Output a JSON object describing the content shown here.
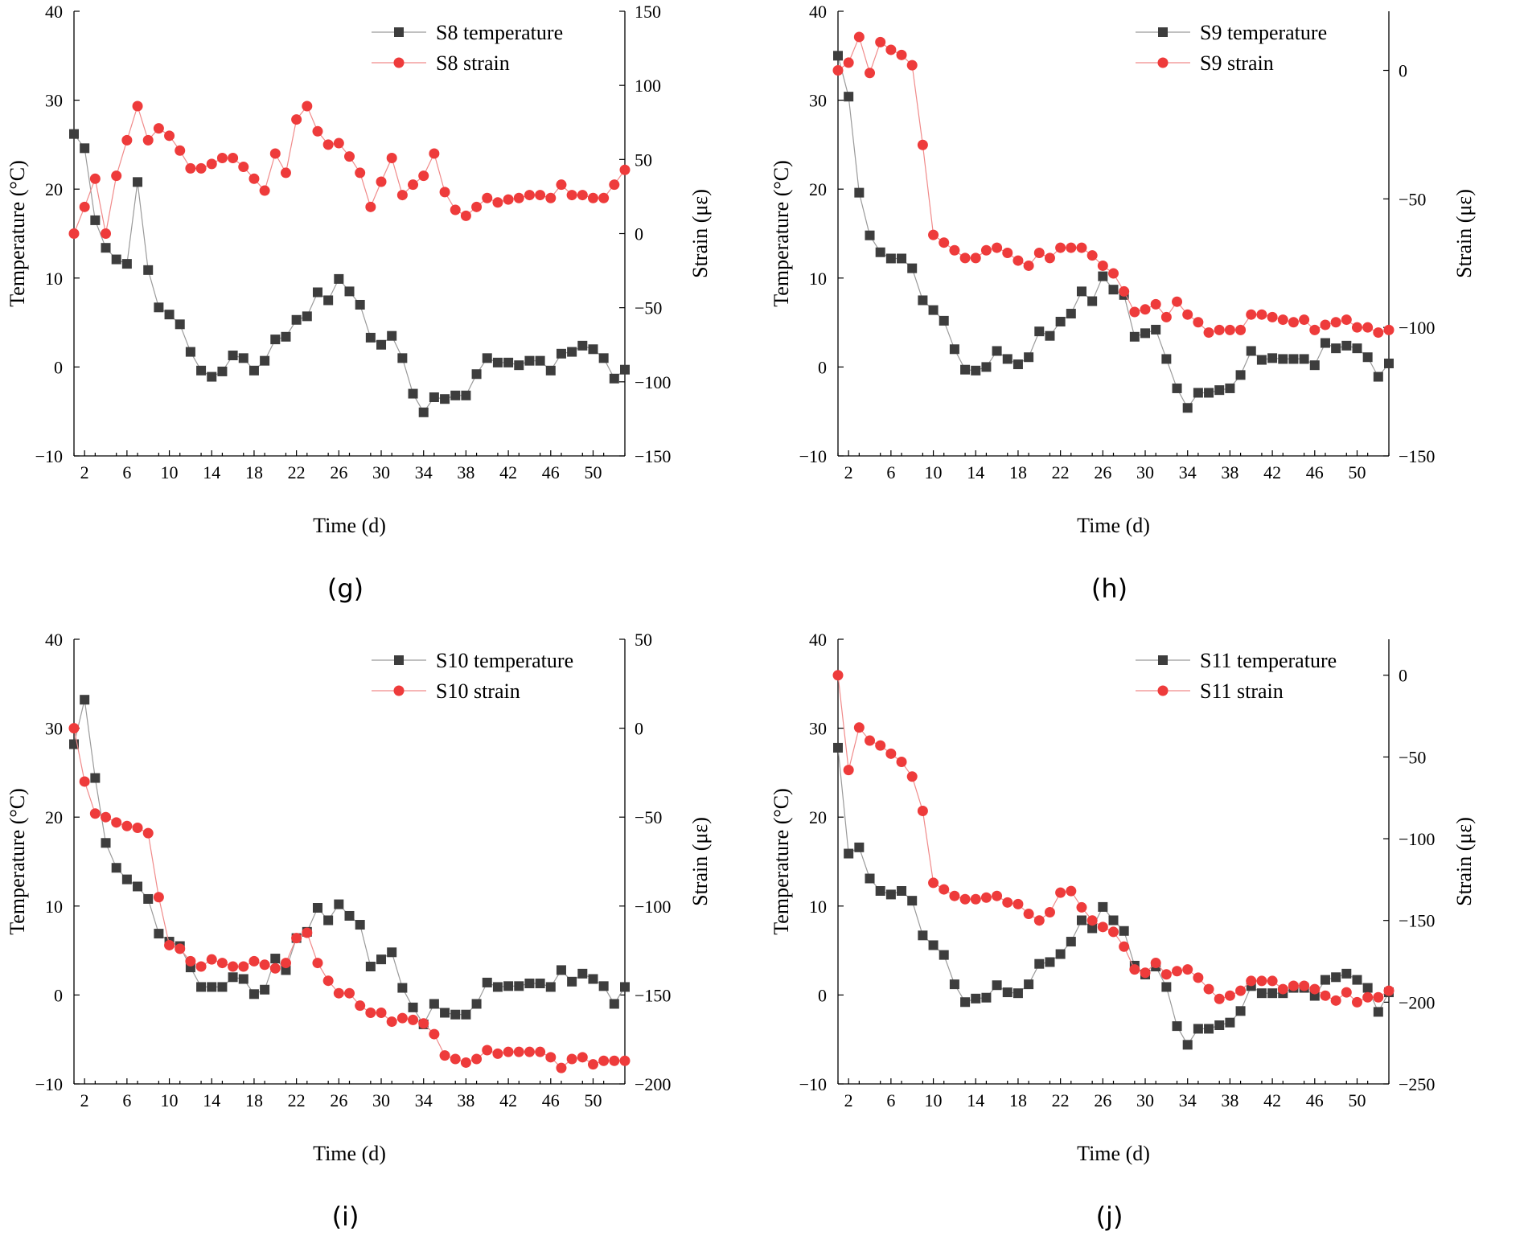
{
  "colors": {
    "temperature": "#3d3d3d",
    "strain": "#ee3b3b"
  },
  "chart_data": [
    {
      "type": "line",
      "caption": "(g)",
      "xlabel": "Time (d)",
      "ylabel_left": "Temperature (°C)",
      "ylabel_right": "Strain (με)",
      "xlim": [
        1,
        53
      ],
      "xticks": [
        2,
        6,
        10,
        14,
        18,
        22,
        26,
        30,
        34,
        38,
        42,
        46,
        50
      ],
      "ylim_left": [
        -10,
        40
      ],
      "yticks_left": [
        -10,
        0,
        10,
        20,
        30,
        40
      ],
      "ylim_right": [
        -150,
        150
      ],
      "yticks_right": [
        -150,
        -100,
        -50,
        0,
        50,
        100,
        150
      ],
      "ytick_labels_right": [
        "−150",
        "−100",
        "−50",
        "0",
        "50",
        "100",
        "150"
      ],
      "legend_position": "top-right",
      "series": [
        {
          "name": "S8 temperature",
          "axis": "left",
          "marker": "square",
          "values": [
            26.2,
            24.6,
            16.5,
            13.4,
            12.1,
            11.6,
            20.8,
            10.9,
            6.7,
            5.9,
            4.8,
            1.7,
            -0.4,
            -1.1,
            -0.5,
            1.3,
            1.0,
            -0.4,
            0.7,
            3.1,
            3.4,
            5.3,
            5.7,
            8.4,
            7.5,
            9.9,
            8.5,
            7.0,
            3.3,
            2.5,
            3.5,
            1.0,
            -3.0,
            -5.1,
            -3.4,
            -3.6,
            -3.2,
            -3.2,
            -0.8,
            1.0,
            0.5,
            0.5,
            0.2,
            0.7,
            0.7,
            -0.4,
            1.5,
            1.7,
            2.4,
            2.0,
            1.0,
            -1.3,
            -0.3
          ]
        },
        {
          "name": "S8 strain",
          "axis": "right",
          "marker": "circle",
          "values": [
            0,
            18,
            37,
            0,
            39,
            63,
            86,
            63,
            71,
            66,
            56,
            44,
            44,
            47,
            51,
            51,
            45,
            37,
            29,
            54,
            41,
            77,
            86,
            69,
            60,
            61,
            52,
            41,
            18,
            35,
            51,
            26,
            33,
            39,
            54,
            28,
            16,
            12,
            18,
            24,
            21,
            23,
            24,
            26,
            26,
            24,
            33,
            26,
            26,
            24,
            24,
            33,
            43
          ]
        }
      ]
    },
    {
      "type": "line",
      "caption": "(h)",
      "xlabel": "Time (d)",
      "ylabel_left": "Temperature (°C)",
      "ylabel_right": "Strain (με)",
      "xlim": [
        1,
        53
      ],
      "xticks": [
        2,
        6,
        10,
        14,
        18,
        22,
        26,
        30,
        34,
        38,
        42,
        46,
        50
      ],
      "ylim_left": [
        -10,
        40
      ],
      "yticks_left": [
        -10,
        0,
        10,
        20,
        30,
        40
      ],
      "ylim_right": [
        -150,
        23
      ],
      "yticks_right": [
        -150,
        -100,
        -50,
        0
      ],
      "ytick_labels_right": [
        "−150",
        "−100",
        "−50",
        "0"
      ],
      "legend_position": "top-right",
      "series": [
        {
          "name": "S9 temperature",
          "axis": "left",
          "marker": "square",
          "values": [
            35.0,
            30.4,
            19.6,
            14.8,
            12.9,
            12.2,
            12.2,
            11.1,
            7.5,
            6.4,
            5.2,
            2.0,
            -0.3,
            -0.4,
            0.0,
            1.8,
            0.9,
            0.3,
            1.1,
            4.0,
            3.5,
            5.1,
            6.0,
            8.5,
            7.4,
            10.2,
            8.7,
            8.1,
            3.4,
            3.8,
            4.2,
            0.9,
            -2.4,
            -4.6,
            -2.9,
            -2.9,
            -2.6,
            -2.4,
            -0.9,
            1.8,
            0.8,
            1.0,
            0.9,
            0.9,
            0.9,
            0.2,
            2.7,
            2.1,
            2.4,
            2.1,
            1.1,
            -1.1,
            0.4
          ]
        },
        {
          "name": "S9 strain",
          "axis": "right",
          "marker": "circle",
          "values": [
            0,
            3,
            13,
            -1,
            11,
            8,
            6,
            2,
            -29,
            -64,
            -67,
            -70,
            -73,
            -73,
            -70,
            -69,
            -71,
            -74,
            -76,
            -71,
            -73,
            -69,
            -69,
            -69,
            -72,
            -76,
            -79,
            -86,
            -94,
            -93,
            -91,
            -96,
            -90,
            -95,
            -98,
            -102,
            -101,
            -101,
            -101,
            -95,
            -95,
            -96,
            -97,
            -98,
            -97,
            -101,
            -99,
            -98,
            -97,
            -100,
            -100,
            -102,
            -101
          ]
        }
      ]
    },
    {
      "type": "line",
      "caption": "(i)",
      "xlabel": "Time (d)",
      "ylabel_left": "Temperature (°C)",
      "ylabel_right": "Strain (με)",
      "xlim": [
        1,
        53
      ],
      "xticks": [
        2,
        6,
        10,
        14,
        18,
        22,
        26,
        30,
        34,
        38,
        42,
        46,
        50
      ],
      "ylim_left": [
        -10,
        40
      ],
      "yticks_left": [
        -10,
        0,
        10,
        20,
        30,
        40
      ],
      "ylim_right": [
        -200,
        50
      ],
      "yticks_right": [
        -200,
        -150,
        -100,
        -50,
        0,
        50
      ],
      "ytick_labels_right": [
        "−200",
        "−150",
        "−100",
        "−50",
        "0",
        "50"
      ],
      "legend_position": "top-right",
      "series": [
        {
          "name": "S10 temperature",
          "axis": "left",
          "marker": "square",
          "values": [
            28.2,
            33.2,
            24.4,
            17.1,
            14.3,
            13.0,
            12.2,
            10.8,
            6.9,
            6.0,
            5.5,
            3.1,
            0.9,
            0.9,
            0.9,
            2.0,
            1.8,
            0.1,
            0.6,
            4.1,
            2.8,
            6.4,
            7.1,
            9.8,
            8.4,
            10.2,
            8.9,
            7.9,
            3.2,
            4.0,
            4.8,
            0.8,
            -1.4,
            -3.3,
            -1.0,
            -2.0,
            -2.2,
            -2.2,
            -1.0,
            1.4,
            0.9,
            1.0,
            1.0,
            1.3,
            1.3,
            0.9,
            2.8,
            1.5,
            2.4,
            1.8,
            1.0,
            -1.0,
            0.9
          ]
        },
        {
          "name": "S10 strain",
          "axis": "right",
          "marker": "circle",
          "values": [
            0,
            -30,
            -48,
            -50,
            -53,
            -55,
            -56,
            -59,
            -95,
            -122,
            -124,
            -131,
            -134,
            -130,
            -132,
            -134,
            -134,
            -131,
            -133,
            -135,
            -132,
            -118,
            -115,
            -132,
            -142,
            -149,
            -149,
            -156,
            -160,
            -160,
            -165,
            -163,
            -164,
            -166,
            -172,
            -184,
            -186,
            -188,
            -186,
            -181,
            -183,
            -182,
            -182,
            -182,
            -182,
            -185,
            -191,
            -186,
            -185,
            -189,
            -187,
            -187,
            -187
          ]
        }
      ]
    },
    {
      "type": "line",
      "caption": "(j)",
      "xlabel": "Time (d)",
      "ylabel_left": "Temperature (°C)",
      "ylabel_right": "Strain (με)",
      "xlim": [
        1,
        53
      ],
      "xticks": [
        2,
        6,
        10,
        14,
        18,
        22,
        26,
        30,
        34,
        38,
        42,
        46,
        50
      ],
      "ylim_left": [
        -10,
        40
      ],
      "yticks_left": [
        -10,
        0,
        10,
        20,
        30,
        40
      ],
      "ylim_right": [
        -250,
        22
      ],
      "yticks_right": [
        -250,
        -200,
        -150,
        -100,
        -50,
        0
      ],
      "ytick_labels_right": [
        "−250",
        "−200",
        "−150",
        "−100",
        "−50",
        "0"
      ],
      "legend_position": "top-right",
      "series": [
        {
          "name": "S11 temperature",
          "axis": "left",
          "marker": "square",
          "values": [
            27.8,
            15.9,
            16.6,
            13.1,
            11.7,
            11.3,
            11.7,
            10.6,
            6.7,
            5.6,
            4.5,
            1.2,
            -0.8,
            -0.4,
            -0.3,
            1.1,
            0.3,
            0.2,
            1.2,
            3.5,
            3.7,
            4.6,
            6.0,
            8.4,
            7.5,
            9.9,
            8.4,
            7.2,
            3.3,
            2.3,
            3.2,
            0.9,
            -3.5,
            -5.6,
            -3.8,
            -3.8,
            -3.4,
            -3.1,
            -1.8,
            1.0,
            0.2,
            0.2,
            0.2,
            0.8,
            0.8,
            -0.1,
            1.7,
            2.0,
            2.4,
            1.7,
            0.8,
            -1.9,
            0.3
          ]
        },
        {
          "name": "S11 strain",
          "axis": "right",
          "marker": "circle",
          "values": [
            0,
            -58,
            -32,
            -40,
            -43,
            -48,
            -53,
            -62,
            -83,
            -127,
            -131,
            -135,
            -137,
            -137,
            -136,
            -135,
            -139,
            -140,
            -146,
            -150,
            -145,
            -133,
            -132,
            -142,
            -150,
            -154,
            -157,
            -166,
            -180,
            -182,
            -176,
            -183,
            -181,
            -180,
            -185,
            -192,
            -198,
            -196,
            -193,
            -187,
            -187,
            -187,
            -192,
            -190,
            -190,
            -192,
            -196,
            -199,
            -194,
            -200,
            -197,
            -197,
            -193
          ]
        }
      ]
    }
  ]
}
